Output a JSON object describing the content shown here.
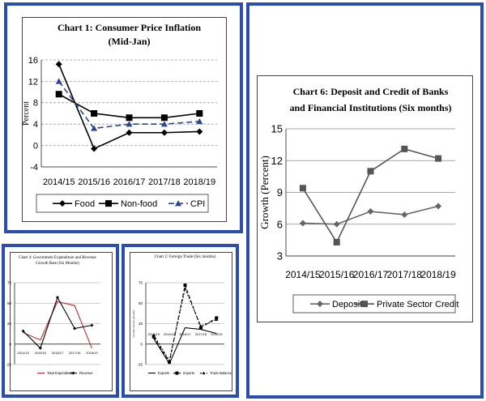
{
  "chart_data": [
    {
      "id": "c1",
      "type": "line",
      "title": "Chart 1: Consumer Price Inflation",
      "subtitle": "(Mid-Jan)",
      "ylabel": "Percent",
      "categories": [
        "2014/15",
        "2015/16",
        "2016/17",
        "2017/18",
        "2018/19"
      ],
      "yticks": [
        "16",
        "12",
        "8",
        "4",
        "0",
        "-4"
      ],
      "ylim": [
        -4,
        16
      ],
      "series": [
        {
          "name": "Food",
          "values": [
            15.2,
            -0.6,
            2.4,
            2.4,
            2.6
          ],
          "color": "#000000",
          "marker": "diamond",
          "dash": ""
        },
        {
          "name": "Non-food",
          "values": [
            9.6,
            6.0,
            5.2,
            5.2,
            6.0
          ],
          "color": "#000000",
          "marker": "square",
          "dash": ""
        },
        {
          "name": "CPI",
          "values": [
            12.0,
            3.2,
            4.0,
            4.0,
            4.5
          ],
          "color": "#2b4590",
          "marker": "triangle",
          "dash": "7,4"
        }
      ],
      "legend": "bottom"
    },
    {
      "id": "c6",
      "type": "line",
      "title": "Chart 6:  Deposit and Credit of Banks",
      "subtitle": "and Financial Institutions (Six months)",
      "ylabel": "Growth (Percent)",
      "categories": [
        "2014/15",
        "2015/16",
        "2016/17",
        "2017/18",
        "2018/19"
      ],
      "yticks": [
        "15",
        "12",
        "9",
        "6",
        "3"
      ],
      "ylim": [
        3,
        15
      ],
      "series": [
        {
          "name": "Deposit",
          "values": [
            6.1,
            6.0,
            7.2,
            6.9,
            7.7
          ],
          "color": "#666666",
          "marker": "diamond",
          "dash": ""
        },
        {
          "name": "Private Sector Credit",
          "values": [
            9.4,
            4.3,
            11.0,
            13.1,
            12.2
          ],
          "color": "#555555",
          "marker": "square",
          "dash": ""
        }
      ],
      "legend": "bottom"
    },
    {
      "id": "c4",
      "type": "line",
      "title": "Chart 4: Government Expenditure and Revenue",
      "subtitle": "Growth Rate (Six Months)",
      "ylabel": "",
      "categories": [
        "2014/15",
        "2015/16",
        "2016/17",
        "2017/18",
        "2018/19"
      ],
      "yticks": [
        "75",
        "50",
        "25",
        "0",
        "-25"
      ],
      "ylim": [
        -25,
        75
      ],
      "series": [
        {
          "name": "Total Expenditure",
          "values": [
            14,
            5,
            52,
            47,
            -5
          ],
          "color": "#b03030",
          "marker": "none",
          "dash": ""
        },
        {
          "name": "Revenue",
          "values": [
            16,
            -5,
            57,
            19,
            23
          ],
          "color": "#000000",
          "marker": "diamond",
          "dash": ""
        }
      ],
      "legend": "bottom"
    },
    {
      "id": "c2",
      "type": "line",
      "title": "Chart 2: Foreign Trade (Six months)",
      "subtitle": "",
      "ylabel": "Growth rate (in percent)",
      "categories": [
        "2014/15",
        "2015/16",
        "2016/17",
        "2017/18",
        "2018/19"
      ],
      "yticks": [
        "75",
        "50",
        "25",
        "0",
        "-25"
      ],
      "ylim": [
        -25,
        75
      ],
      "series": [
        {
          "name": "Exports",
          "values": [
            7,
            -24,
            20,
            18,
            13
          ],
          "color": "#000000",
          "marker": "none",
          "dash": ""
        },
        {
          "name": "Imports",
          "values": [
            9,
            -22,
            72,
            20,
            32
          ],
          "color": "#000000",
          "marker": "square",
          "dash": "4,3"
        },
        {
          "name": "Trade Balance",
          "values": [
            11,
            -20,
            68,
            22,
            30
          ],
          "color": "#000000",
          "marker": "triangle",
          "dash": "2,2"
        }
      ],
      "legend": "bottom"
    }
  ]
}
